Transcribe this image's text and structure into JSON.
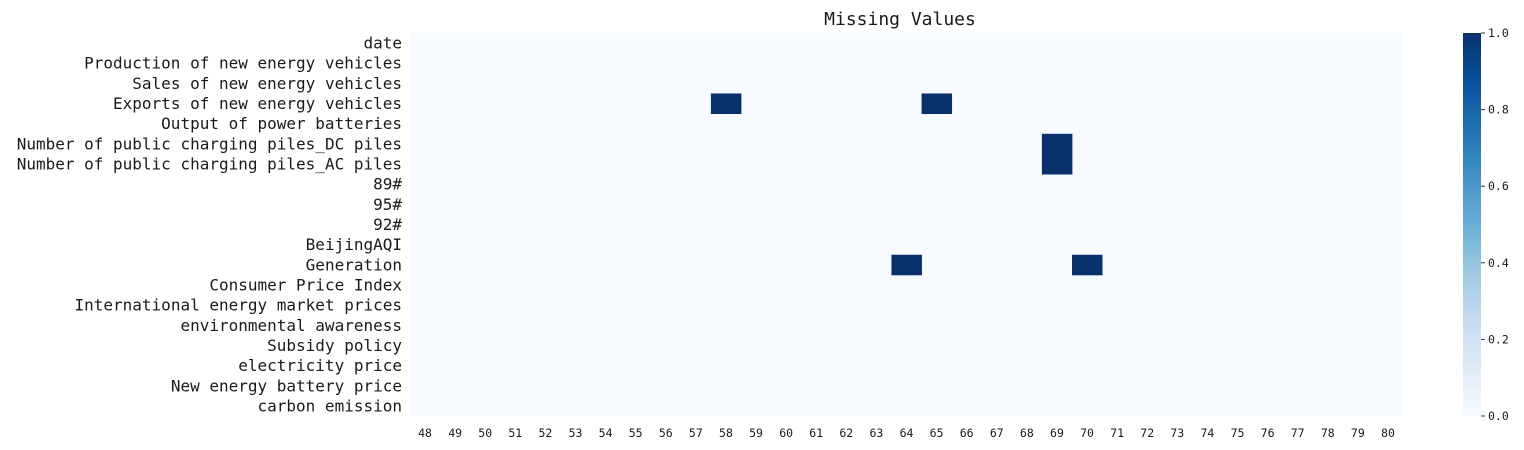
{
  "chart_data": {
    "type": "heatmap",
    "title": "Missing Values",
    "rows": [
      "date",
      "Production of new energy vehicles",
      "Sales of new energy vehicles",
      "Exports of new energy vehicles",
      "Output of power batteries",
      "Number of public charging piles_DC piles",
      "Number of public charging piles_AC piles",
      "89#",
      "95#",
      "92#",
      "BeijingAQI",
      "Generation",
      "Consumer Price Index",
      "International energy market prices",
      "environmental awareness",
      "Subsidy policy",
      "electricity price",
      "New energy battery price",
      "carbon emission"
    ],
    "columns": [
      "48",
      "49",
      "50",
      "51",
      "52",
      "53",
      "54",
      "55",
      "56",
      "57",
      "58",
      "59",
      "60",
      "61",
      "62",
      "63",
      "64",
      "65",
      "66",
      "67",
      "68",
      "69",
      "70",
      "71",
      "72",
      "73",
      "74",
      "75",
      "76",
      "77",
      "78",
      "79",
      "80"
    ],
    "missing_cells": [
      {
        "row": "Exports of new energy vehicles",
        "column": "58",
        "value": 1
      },
      {
        "row": "Exports of new energy vehicles",
        "column": "65",
        "value": 1
      },
      {
        "row": "Number of public charging piles_DC piles",
        "column": "69",
        "value": 1
      },
      {
        "row": "Number of public charging piles_AC piles",
        "column": "69",
        "value": 1
      },
      {
        "row": "Generation",
        "column": "64",
        "value": 1
      },
      {
        "row": "Generation",
        "column": "70",
        "value": 1
      }
    ],
    "default_value": 0,
    "colorbar": {
      "range": [
        0,
        1
      ],
      "ticks": [
        "0.0",
        "0.2",
        "0.4",
        "0.6",
        "0.8",
        "1.0"
      ],
      "colormap": "Blues",
      "color_low": "#f7fbff",
      "color_high": "#08306b"
    }
  }
}
